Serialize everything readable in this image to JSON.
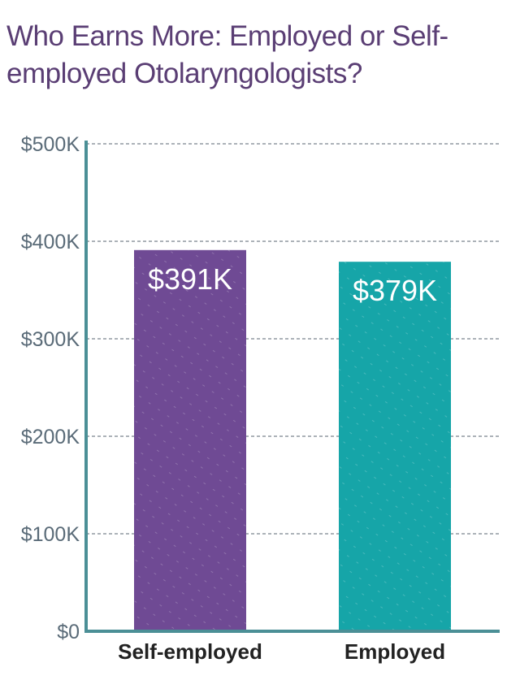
{
  "colors": {
    "title": "#5a3e74",
    "axis": "#4b8f96",
    "tick": "#5a6b78",
    "grid": "#5a6470",
    "category_text": "#222222",
    "data_label": "#ffffff"
  },
  "chart_data": {
    "type": "bar",
    "title": "Who Earns More: Employed or Self-employed Otolaryngologists?",
    "categories": [
      "Self-employed",
      "Employed"
    ],
    "values": [
      391,
      379
    ],
    "data_labels": [
      "$391K",
      "$379K"
    ],
    "bar_colors": [
      "#6f4a94",
      "#16a5a8"
    ],
    "ylim": [
      0,
      500
    ],
    "yticks": [
      0,
      100,
      200,
      300,
      400,
      500
    ],
    "ytick_labels": [
      "$0",
      "$100K",
      "$200K",
      "$300K",
      "$400K",
      "$500K"
    ],
    "xlabel": "",
    "ylabel": "",
    "grid": true,
    "legend": "none"
  }
}
